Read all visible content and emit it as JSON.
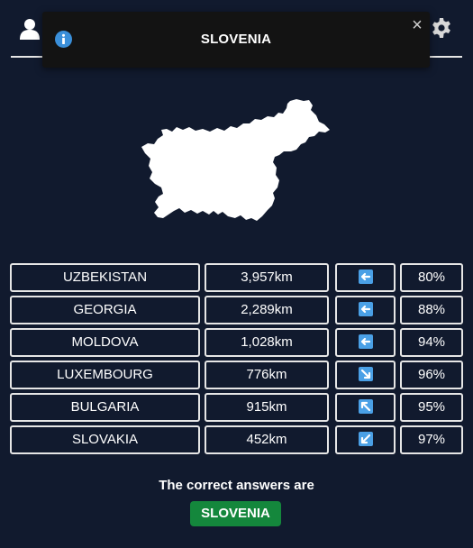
{
  "toast": {
    "title": "SLOVENIA",
    "info_icon": "info-icon",
    "close_label": "×"
  },
  "header": {
    "left_icon": "user-icon",
    "right_icon": "gear-icon"
  },
  "colors": {
    "background": "#111a2e",
    "arrow": "#4aa0e6",
    "answer_badge": "#14873c"
  },
  "guesses": [
    {
      "country": "UZBEKISTAN",
      "distance": "3,957km",
      "direction": "W",
      "proximity": "80%"
    },
    {
      "country": "GEORGIA",
      "distance": "2,289km",
      "direction": "W",
      "proximity": "88%"
    },
    {
      "country": "MOLDOVA",
      "distance": "1,028km",
      "direction": "W",
      "proximity": "94%"
    },
    {
      "country": "LUXEMBOURG",
      "distance": "776km",
      "direction": "SE",
      "proximity": "96%"
    },
    {
      "country": "BULGARIA",
      "distance": "915km",
      "direction": "NW",
      "proximity": "95%"
    },
    {
      "country": "SLOVAKIA",
      "distance": "452km",
      "direction": "SW",
      "proximity": "97%"
    }
  ],
  "result": {
    "label": "The correct answers are",
    "answer": "SLOVENIA"
  }
}
